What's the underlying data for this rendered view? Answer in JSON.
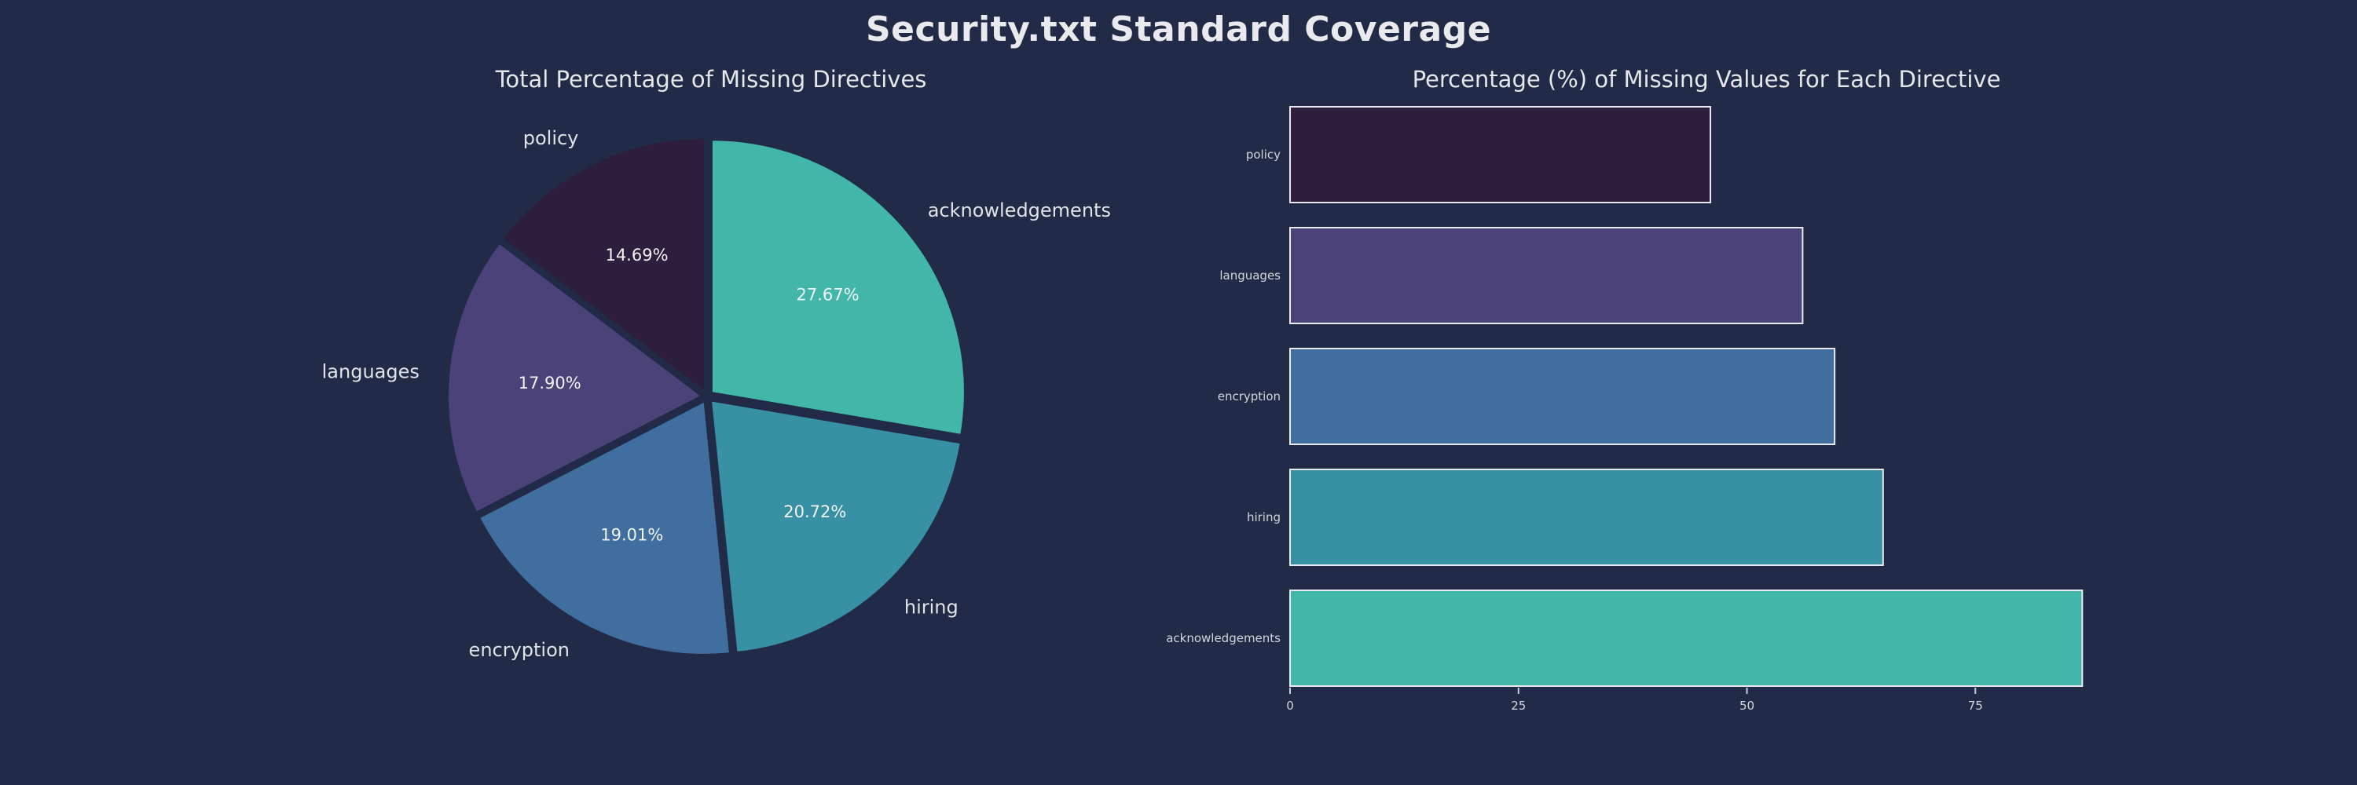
{
  "title": "Security.txt Standard Coverage",
  "colors": {
    "background": "#212a46",
    "title_text": "#eaeaee",
    "subtitle_text": "#e6e7ea",
    "pct_text": "#f2f3f5",
    "label_text": "#e2e3e8",
    "tick_text": "#d4d6dc",
    "bar_edge": "#e8eaef"
  },
  "chart_data": [
    {
      "type": "pie",
      "title": "Total Percentage of Missing Directives",
      "labels": [
        "acknowledgements",
        "hiring",
        "encryption",
        "languages",
        "policy"
      ],
      "values": [
        27.67,
        20.72,
        19.01,
        17.9,
        14.69
      ],
      "pct_labels": [
        "27.67%",
        "20.72%",
        "19.01%",
        "17.90%",
        "14.69%"
      ],
      "slice_colors": [
        "#41b6a9",
        "#3790a3",
        "#3f6e9f",
        "#4a4278",
        "#2c1e3c"
      ],
      "start_angle": 90,
      "counterclock": false,
      "exploded": true,
      "legend": false
    },
    {
      "type": "bar",
      "orientation": "horizontal",
      "title": "Percentage (%) of Missing Values for Each Directive",
      "categories": [
        "policy",
        "languages",
        "encryption",
        "hiring",
        "acknowledgements"
      ],
      "values": [
        46.0,
        56.1,
        59.6,
        64.9,
        86.7
      ],
      "bar_colors": [
        "#2c1e3c",
        "#4a4278",
        "#3f6e9f",
        "#3790a3",
        "#41b6a9"
      ],
      "xticks": [
        0,
        25,
        50,
        75
      ],
      "xlim": [
        0,
        91
      ],
      "xlabel": "",
      "ylabel": "",
      "grid": false,
      "legend": false
    }
  ]
}
